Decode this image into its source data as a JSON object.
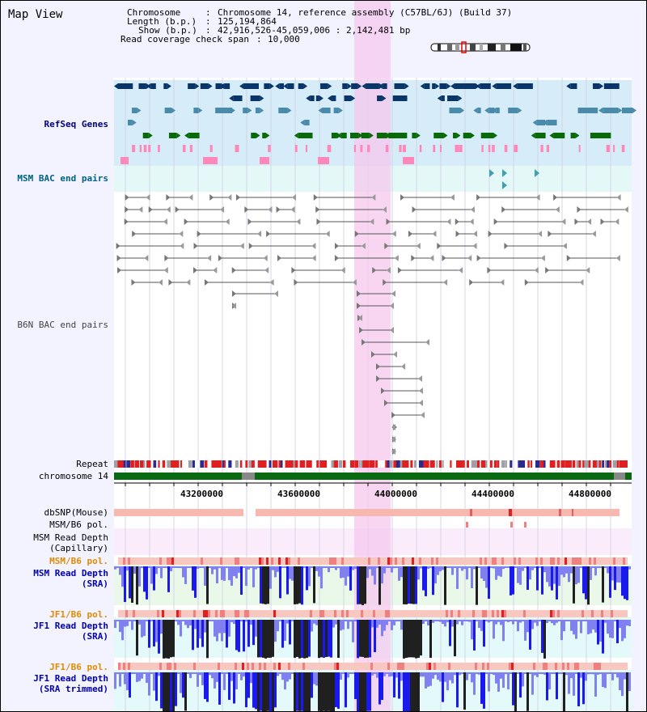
{
  "title": "Map View",
  "info": {
    "chromosome_key": "Chromosome",
    "chromosome_val": "Chromosome 14, reference assembly (C57BL/6J) (Build 37)",
    "length_key": "Length (b.p.)",
    "length_val": "125,194,864",
    "show_key": "Show (b.p.)",
    "show_val": "42,916,526-45,059,006 : 2,142,481 bp",
    "coverage_key": "Read coverage check span",
    "coverage_val": "10,000"
  },
  "tracks": {
    "refseq": "RefSeq Genes",
    "msm_bac": "MSM BAC end pairs",
    "b6n_bac": "B6N BAC end pairs",
    "repeat": "Repeat",
    "chromosome": "chromosome 14",
    "dbsnp": "dbSNP(Mouse)",
    "msm_b6_pol_1": "MSM/B6 pol.",
    "msm_capillary_1": "MSM Read Depth",
    "msm_capillary_2": "(Capillary)",
    "msm_b6_pol_2": "MSM/B6 pol.",
    "msm_sra_1": "MSM Read Depth",
    "msm_sra_2": "(SRA)",
    "jf1_b6_pol_1": "JF1/B6 pol.",
    "jf1_sra_1": "JF1 Read Depth",
    "jf1_sra_2": "(SRA)",
    "jf1_b6_pol_2": "JF1/B6 pol.",
    "jf1_trim_1": "JF1 Read Depth",
    "jf1_trim_2": "(SRA trimmed)"
  },
  "axis_ticks": [
    "43200000",
    "43600000",
    "44000000",
    "44400000",
    "44800000"
  ],
  "colors": {
    "refseq_bg": "#d6ecf8",
    "highlight": "#f6c8ee",
    "gene_dark": "#0a3568",
    "gene_mid": "#4a8aaa",
    "gene_green": "#0a6a0a",
    "gene_pink": "#ff88bb",
    "chromosome_green": "#0a6a12",
    "depth_blue": "#1a1aee",
    "depth_light": "#8080f0"
  }
}
